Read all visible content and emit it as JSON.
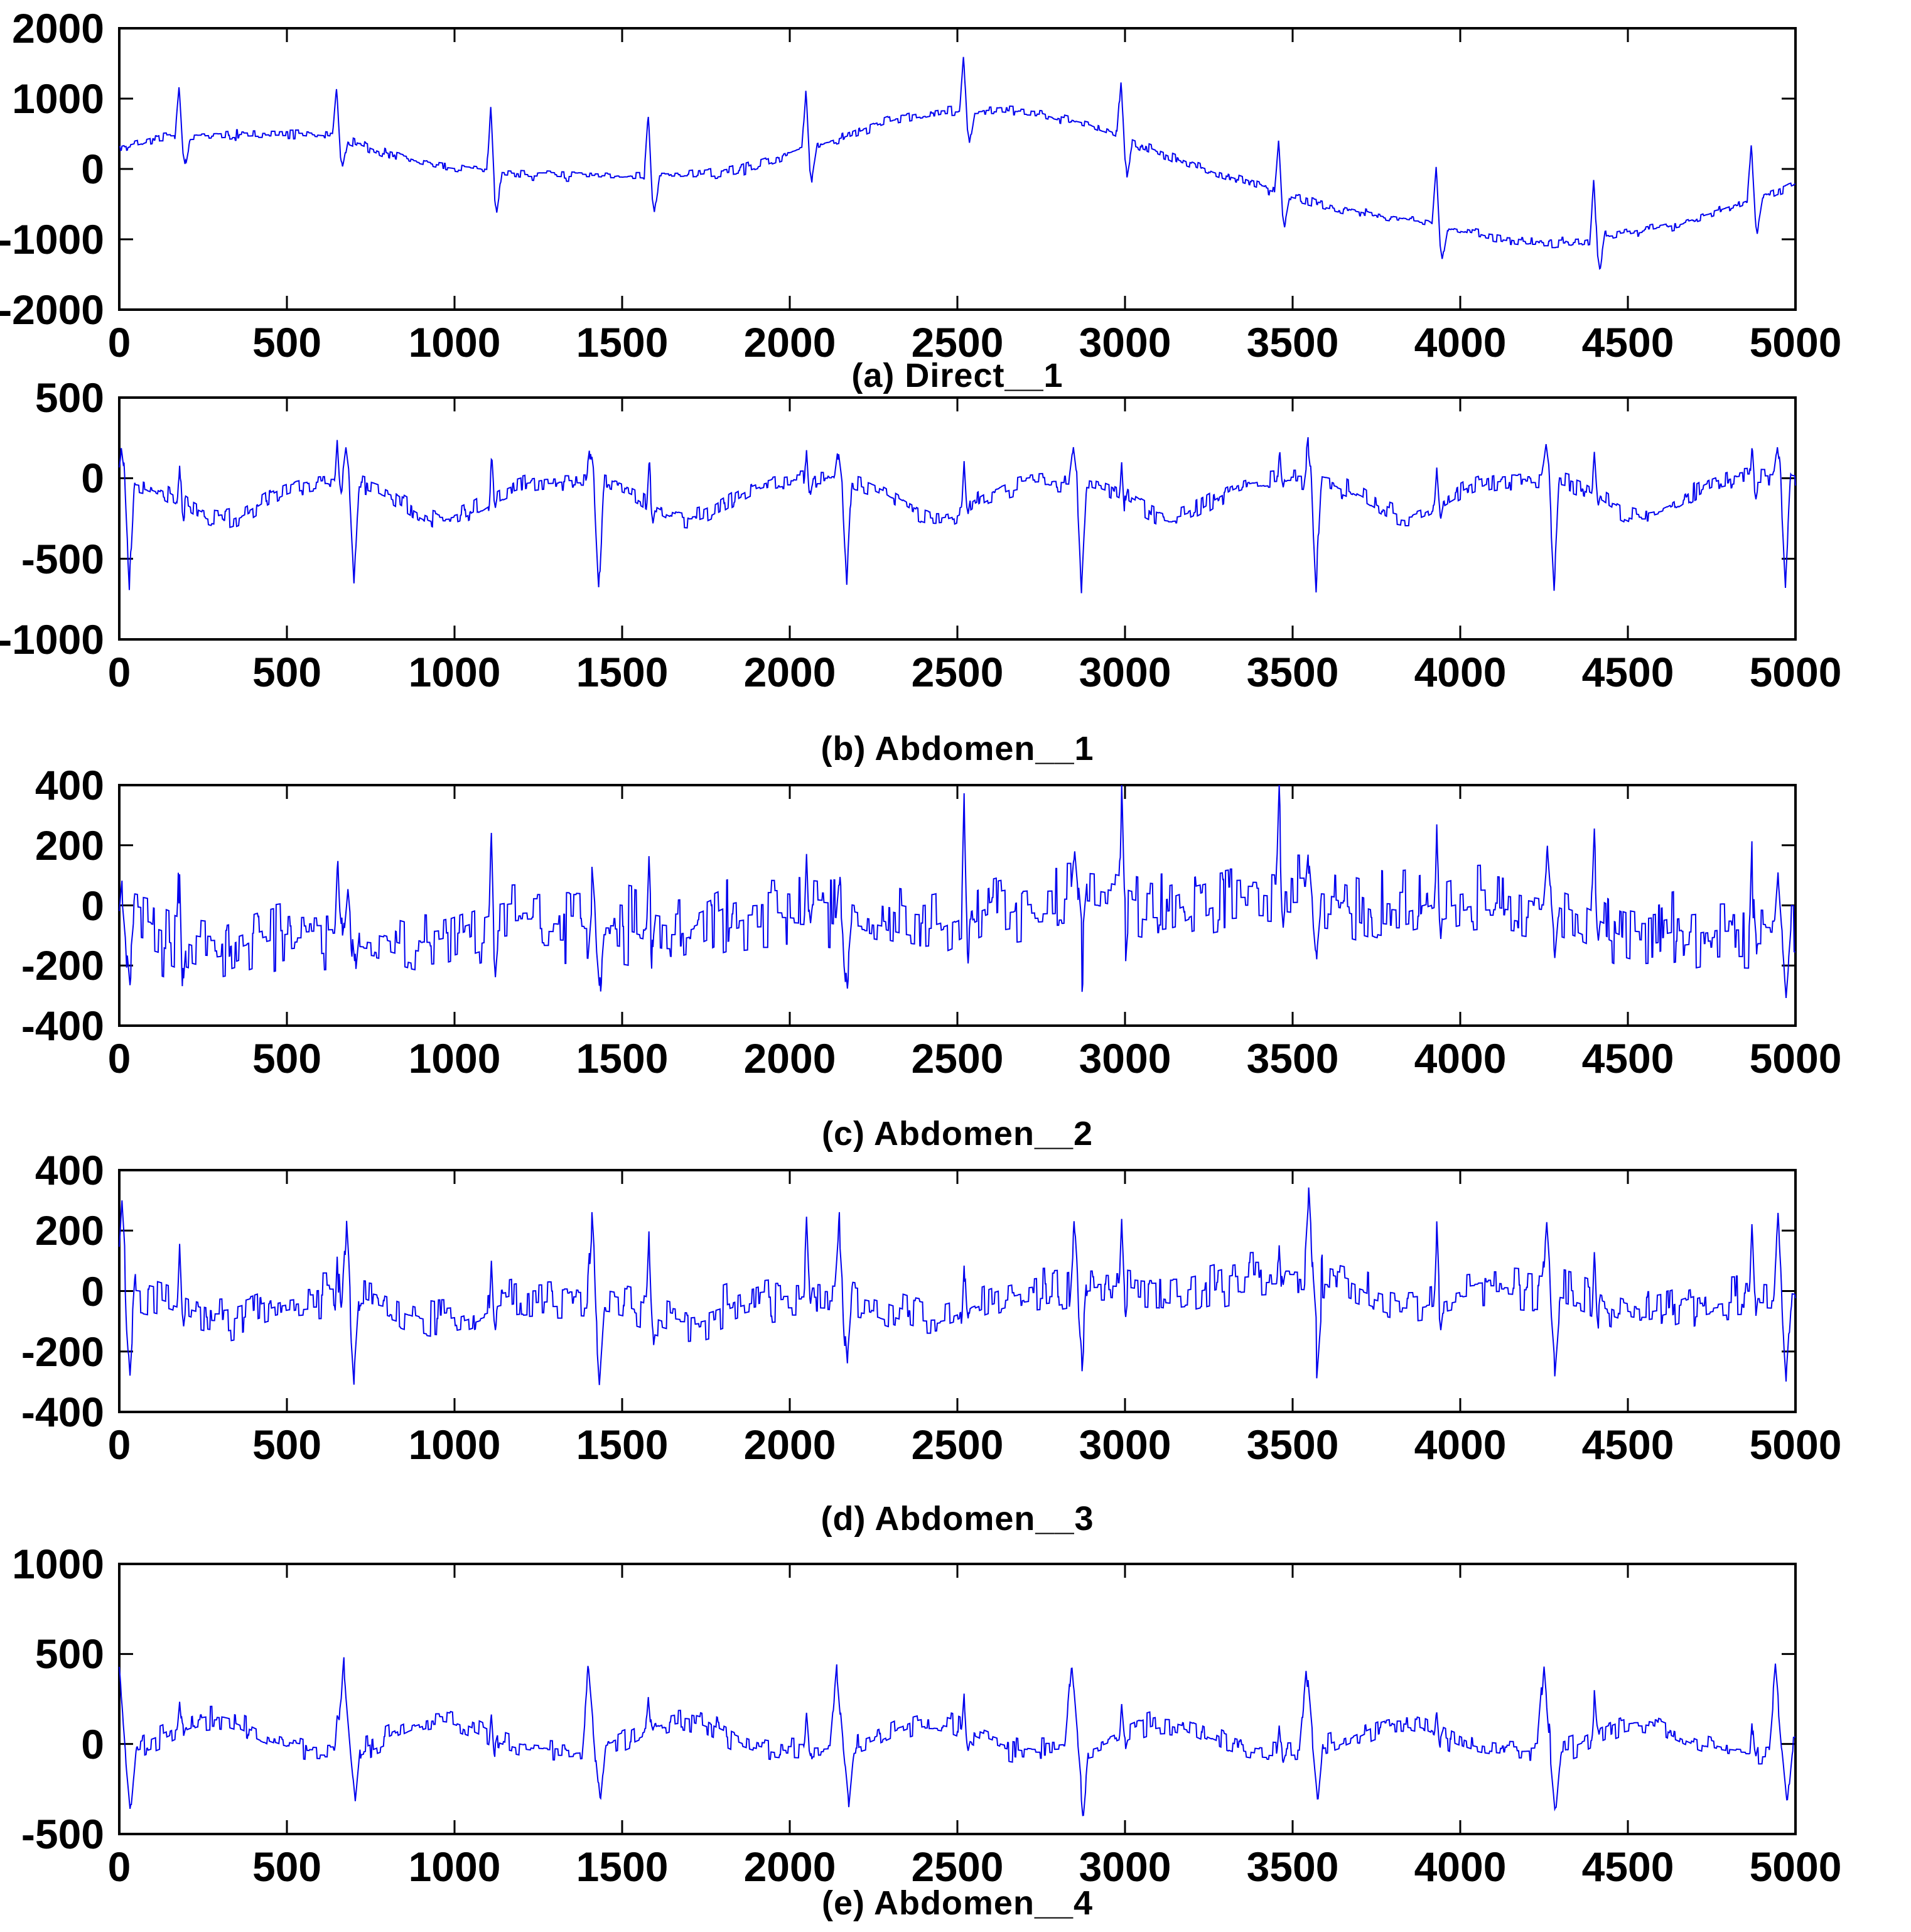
{
  "figure": {
    "background": "#ffffff",
    "axis_color": "#000000",
    "line_color": "#0000ee"
  },
  "chart_data": {
    "type": "line",
    "title": "",
    "layout_hint": "five stacked time-series panels, shared x axis range, boxed axes, inward ticks, no grid, no legend",
    "x": {
      "min": 0,
      "max": 5000,
      "ticks": [
        0,
        500,
        1000,
        1500,
        2000,
        2500,
        3000,
        3500,
        4000,
        4500,
        5000
      ]
    },
    "fetal_beat_x": [
      180,
      650,
      1110,
      1580,
      2050,
      2520,
      2990,
      3460,
      3930,
      4400,
      4870
    ],
    "maternal_beat_x": [
      30,
      700,
      1430,
      2170,
      2870,
      3570,
      4280,
      4970
    ],
    "panels": [
      {
        "caption": "(a) Direct__1",
        "ylim": [
          -2000,
          2000
        ],
        "yticks": [
          2000,
          1000,
          0,
          -1000,
          -2000
        ],
        "xticks": [
          0,
          500,
          1000,
          1500,
          2000,
          2500,
          3000,
          3500,
          4000,
          4500,
          5000
        ],
        "line_color": "#0000ee",
        "signal": {
          "baseline": [
            [
              0,
              290
            ],
            [
              120,
              430
            ],
            [
              350,
              480
            ],
            [
              550,
              490
            ],
            [
              680,
              430
            ],
            [
              800,
              200
            ],
            [
              950,
              50
            ],
            [
              1100,
              -40
            ],
            [
              1300,
              -90
            ],
            [
              1500,
              -110
            ],
            [
              1700,
              -90
            ],
            [
              1850,
              -20
            ],
            [
              2000,
              220
            ],
            [
              2150,
              430
            ],
            [
              2300,
              690
            ],
            [
              2450,
              800
            ],
            [
              2600,
              830
            ],
            [
              2750,
              790
            ],
            [
              2900,
              620
            ],
            [
              3050,
              330
            ],
            [
              3200,
              60
            ],
            [
              3350,
              -180
            ],
            [
              3500,
              -400
            ],
            [
              3700,
              -620
            ],
            [
              3900,
              -760
            ],
            [
              4050,
              -930
            ],
            [
              4200,
              -1040
            ],
            [
              4350,
              -1040
            ],
            [
              4500,
              -900
            ],
            [
              4650,
              -780
            ],
            [
              4800,
              -550
            ],
            [
              4900,
              -380
            ],
            [
              5000,
              -220
            ]
          ],
          "beats": {
            "use": "fetal",
            "up": 810,
            "up_off": -2,
            "up_w": 12,
            "down": -480,
            "down_off": 16,
            "down_w": 16,
            "amp_var": 0.3
          },
          "fetal": null,
          "twave": null,
          "noise": {
            "sigma": 45,
            "hold": 5
          },
          "seed": 7
        }
      },
      {
        "caption": "(b) Abdomen__1",
        "ylim": [
          -1000,
          500
        ],
        "yticks": [
          500,
          0,
          -500,
          -1000
        ],
        "xticks": [
          0,
          500,
          1000,
          1500,
          2000,
          2500,
          3000,
          3500,
          4000,
          4500,
          5000
        ],
        "line_color": "#0000ee",
        "signal": {
          "baseline": [
            [
              0,
              -20
            ],
            [
              5000,
              0
            ]
          ],
          "beats": {
            "use": "maternal",
            "up": 215,
            "up_off": -24,
            "up_w": 13,
            "down": -650,
            "down_off": 0,
            "down_w": 15,
            "amp_var": 0.12
          },
          "fetal": {
            "up": 255,
            "w": 7,
            "down": -70,
            "amp_var": 0.4
          },
          "twave": {
            "amp": -235,
            "off": 270,
            "w": 160
          },
          "noise": {
            "sigma": 38,
            "hold": 5
          },
          "seed": 11
        }
      },
      {
        "caption": "(c) Abdomen__2",
        "ylim": [
          -400,
          400
        ],
        "yticks": [
          400,
          200,
          0,
          -200,
          -400
        ],
        "xticks": [
          0,
          500,
          1000,
          1500,
          2000,
          2500,
          3000,
          3500,
          4000,
          4500,
          5000
        ],
        "line_color": "#0000ee",
        "signal": {
          "baseline": [
            [
              0,
              -70
            ],
            [
              600,
              -80
            ],
            [
              1000,
              -50
            ],
            [
              1400,
              -60
            ],
            [
              1800,
              -10
            ],
            [
              2200,
              -40
            ],
            [
              2600,
              10
            ],
            [
              2900,
              30
            ],
            [
              3200,
              60
            ],
            [
              3500,
              30
            ],
            [
              3800,
              50
            ],
            [
              4100,
              40
            ],
            [
              4400,
              -10
            ],
            [
              4700,
              -60
            ],
            [
              5000,
              -70
            ]
          ],
          "beats": {
            "use": "maternal",
            "up": 170,
            "up_off": -20,
            "up_w": 12,
            "down": -190,
            "down_off": 2,
            "down_w": 14,
            "amp_var": 0.25
          },
          "fetal": {
            "up": 290,
            "w": 7,
            "down": -80,
            "amp_var": 0.55
          },
          "twave": {
            "amp": -70,
            "off": 240,
            "w": 150
          },
          "noise": {
            "sigma": 72,
            "hold": 6
          },
          "seed": 23
        }
      },
      {
        "caption": "(d) Abdomen__3",
        "ylim": [
          -400,
          400
        ],
        "yticks": [
          400,
          200,
          0,
          -200,
          -400
        ],
        "xticks": [
          0,
          500,
          1000,
          1500,
          2000,
          2500,
          3000,
          3500,
          4000,
          4500,
          5000
        ],
        "line_color": "#0000ee",
        "signal": {
          "baseline": [
            [
              0,
              -10
            ],
            [
              800,
              -20
            ],
            [
              1600,
              -25
            ],
            [
              2400,
              -30
            ],
            [
              2800,
              0
            ],
            [
              3100,
              70
            ],
            [
              3400,
              45
            ],
            [
              3800,
              40
            ],
            [
              4200,
              0
            ],
            [
              4600,
              -20
            ],
            [
              5000,
              -30
            ]
          ],
          "beats": {
            "use": "maternal",
            "up": 235,
            "up_off": -22,
            "up_w": 13,
            "down": -245,
            "down_off": 2,
            "down_w": 15,
            "amp_var": 0.2
          },
          "fetal": {
            "up": 195,
            "w": 7,
            "down": -50,
            "amp_var": 0.4
          },
          "twave": {
            "amp": -70,
            "off": 260,
            "w": 160
          },
          "noise": {
            "sigma": 46,
            "hold": 6
          },
          "seed": 31
        }
      },
      {
        "caption": "(e) Abdomen__4",
        "ylim": [
          -500,
          1000
        ],
        "yticks": [
          1000,
          500,
          0,
          -500
        ],
        "xticks": [
          0,
          500,
          1000,
          1500,
          2000,
          2500,
          3000,
          3500,
          4000,
          4500,
          5000
        ],
        "line_color": "#0000ee",
        "signal": {
          "baseline": [
            [
              0,
              -40
            ],
            [
              5000,
              -50
            ]
          ],
          "beats": {
            "use": "maternal",
            "up": 450,
            "up_off": -30,
            "up_w": 20,
            "down": -320,
            "down_off": 5,
            "down_w": 16,
            "amp_var": 0.15
          },
          "fetal": {
            "up": 175,
            "w": 7,
            "down": -45,
            "amp_var": 0.35
          },
          "twave": {
            "amp": 170,
            "off": 250,
            "w": 170
          },
          "noise": {
            "sigma": 42,
            "hold": 6
          },
          "seed": 41
        }
      }
    ]
  }
}
